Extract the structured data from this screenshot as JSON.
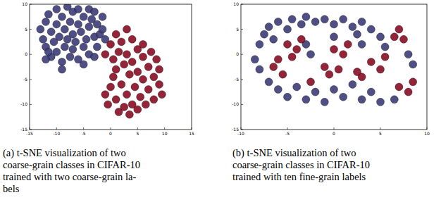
{
  "chart_data": [
    {
      "type": "scatter",
      "caption": [
        "(a) t-SNE visualization of two",
        "coarse-grain classes in CIFAR-10",
        "trained with two coarse-grain la-",
        "bels"
      ],
      "xlim": [
        -15,
        15
      ],
      "ylim": [
        -15,
        10
      ],
      "xticks": [
        -15,
        -10,
        -5,
        0,
        5,
        10,
        15
      ],
      "yticks": [
        -15,
        -10,
        -5,
        0,
        5,
        10
      ],
      "marker": "circle",
      "series": [
        {
          "color": "#3c3c78",
          "x": [
            -13,
            -12.5,
            -12,
            -12,
            -11.5,
            -11,
            -11,
            -10.5,
            -10,
            -10,
            -10,
            -9.5,
            -9,
            -9,
            -8.5,
            -8.5,
            -8,
            -8,
            -7.5,
            -7.5,
            -7,
            -7,
            -7,
            -6.5,
            -6,
            -6,
            -6,
            -5.5,
            -5,
            -5,
            -5,
            -4.5,
            -4,
            -4,
            -4,
            -3.5,
            -3,
            -3,
            -2.5,
            -2.5,
            -2,
            -1.5,
            -1.5,
            -12,
            -9,
            -11.5,
            -3,
            -1
          ],
          "values": [
            5,
            3,
            6.5,
            1.5,
            8,
            4.5,
            -0.5,
            2.5,
            6,
            9,
            0.5,
            3.5,
            7.5,
            -1.5,
            5,
            1.5,
            9.5,
            3,
            6.5,
            -0.5,
            8.5,
            4,
            1,
            2.5,
            6,
            9,
            -1,
            4.5,
            7.5,
            1.5,
            -2,
            3,
            9,
            5.5,
            0,
            7,
            3.5,
            8.5,
            6,
            1.5,
            4,
            7.5,
            5,
            -1,
            -3,
            0.5,
            -0.5,
            3
          ]
        },
        {
          "color": "#8a0c22",
          "x": [
            0,
            0.5,
            1,
            1,
            1.5,
            2,
            2,
            2.5,
            3,
            3,
            3,
            3.5,
            4,
            4,
            4,
            4.5,
            5,
            5,
            5,
            5.5,
            6,
            6,
            6,
            6.5,
            7,
            7,
            7.5,
            8,
            8,
            8.5,
            9,
            9,
            -1,
            -0.5,
            0,
            1,
            1.5,
            2.5,
            -1,
            0.5,
            3.5,
            9.5
          ],
          "values": [
            2,
            -1,
            4,
            -3,
            0.5,
            -6,
            2.5,
            -2,
            -8,
            5,
            0,
            -4,
            -10,
            3,
            -1.5,
            -6.5,
            1,
            -11,
            -3.5,
            -8.5,
            -5,
            2,
            -0.5,
            -10,
            -2.5,
            -7,
            0.5,
            -4.5,
            -9,
            -1,
            -6,
            -3,
            -8,
            -10,
            -6.5,
            -9,
            -11.5,
            -10.5,
            0,
            -4.5,
            -12,
            -8
          ]
        }
      ]
    },
    {
      "type": "scatter",
      "caption": [
        "(b) t-SNE visualization of two",
        "coarse-grain classes in CIFAR-10",
        "trained with ten fine-grain labels"
      ],
      "xlim": [
        -10,
        10
      ],
      "ylim": [
        -15,
        10
      ],
      "xticks": [
        -10,
        -5,
        0,
        5,
        10
      ],
      "yticks": [
        -15,
        -10,
        -5,
        0,
        5,
        10
      ],
      "marker": "circle",
      "series": [
        {
          "color": "#3c3c78",
          "x": [
            -8,
            -7.5,
            -7,
            -6.5,
            -6,
            -5,
            -4.5,
            -3.5,
            -3,
            -2,
            -1,
            0,
            1,
            2,
            2.5,
            3,
            4,
            5,
            5.5,
            -8.5,
            -8,
            -7,
            -6,
            -5,
            -4,
            -3,
            -2,
            -1,
            0,
            1,
            2,
            3,
            4,
            5,
            6.5,
            -3,
            -2.5,
            0,
            3,
            8,
            8.5
          ],
          "values": [
            2,
            4,
            5.5,
            3,
            6.5,
            5,
            7,
            6,
            7.5,
            6.5,
            7,
            6,
            7,
            5.5,
            4,
            6.5,
            5,
            3.5,
            1.5,
            -1,
            -3,
            -5.5,
            -7,
            -8.5,
            -6.5,
            -9,
            -7.5,
            -9.5,
            -7,
            -8.5,
            -6,
            -9,
            -7.5,
            -9.5,
            -9,
            2,
            0,
            3.5,
            2,
            0,
            -2
          ]
        },
        {
          "color": "#8a0c22",
          "x": [
            -5,
            -4,
            -4.5,
            -3.5,
            0,
            1,
            1.5,
            -1,
            -0.5,
            0.5,
            -6.5,
            -5.5,
            -6,
            4,
            5,
            5.5,
            6.5,
            7,
            7.5,
            7,
            8,
            8.5,
            -2.5,
            3,
            2.5
          ],
          "values": [
            2,
            1,
            -0.5,
            3,
            1,
            0,
            2,
            -2.5,
            -4,
            -3,
            -2.5,
            -4,
            -1,
            -1.5,
            -3,
            -0.5,
            3.5,
            5,
            3,
            -6.5,
            -7.5,
            -5.5,
            -5.5,
            -4.5,
            -3.5
          ]
        }
      ]
    }
  ]
}
